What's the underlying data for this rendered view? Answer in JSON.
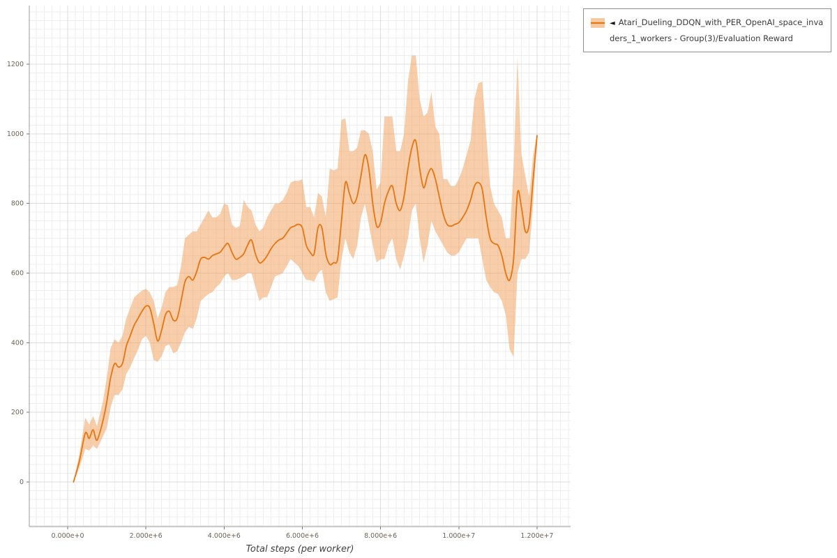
{
  "legend": {
    "toggle_icon": "◄",
    "label": "Atari_Dueling_DDQN_with_PER_OpenAI_space_invaders_1_workers - Group(3)/Evaluation Reward"
  },
  "chart_data": {
    "type": "line",
    "title": "",
    "xlabel": "Total steps (per worker)",
    "ylabel": "",
    "grid": true,
    "legend_position": "top-right",
    "xlim": [
      -980000,
      12860000
    ],
    "ylim": [
      -128,
      1368
    ],
    "x_ticks": {
      "values": [
        0,
        2000000,
        4000000,
        6000000,
        8000000,
        10000000,
        12000000
      ],
      "labels": [
        "0.000e+0",
        "2.000e+6",
        "4.000e+6",
        "6.000e+6",
        "8.000e+6",
        "1.000e+7",
        "1.200e+7"
      ]
    },
    "y_ticks": {
      "values": [
        0,
        200,
        400,
        600,
        800,
        1000,
        1200
      ],
      "labels": [
        "0",
        "200",
        "400",
        "600",
        "800",
        "1000",
        "1200"
      ]
    },
    "series": [
      {
        "name": "Atari_Dueling_DDQN_with_PER_OpenAI_space_invaders_1_workers - Group(3)/Evaluation Reward",
        "color": "#e8740e",
        "band_color": "#f09c56",
        "x": [
          150000,
          300000,
          450000,
          550000,
          650000,
          750000,
          900000,
          1000000,
          1100000,
          1200000,
          1300000,
          1400000,
          1500000,
          1600000,
          1700000,
          1800000,
          1900000,
          2000000,
          2100000,
          2200000,
          2300000,
          2400000,
          2500000,
          2600000,
          2700000,
          2800000,
          2900000,
          3000000,
          3100000,
          3200000,
          3300000,
          3400000,
          3500000,
          3600000,
          3700000,
          3800000,
          3900000,
          4000000,
          4100000,
          4200000,
          4300000,
          4400000,
          4500000,
          4600000,
          4700000,
          4800000,
          4900000,
          5000000,
          5100000,
          5200000,
          5300000,
          5400000,
          5500000,
          5600000,
          5700000,
          5800000,
          5900000,
          6000000,
          6100000,
          6200000,
          6300000,
          6400000,
          6500000,
          6600000,
          6700000,
          6800000,
          6900000,
          7000000,
          7100000,
          7200000,
          7300000,
          7400000,
          7500000,
          7600000,
          7700000,
          7800000,
          7900000,
          8000000,
          8100000,
          8200000,
          8300000,
          8400000,
          8500000,
          8600000,
          8700000,
          8800000,
          8900000,
          9000000,
          9100000,
          9200000,
          9300000,
          9400000,
          9500000,
          9600000,
          9700000,
          9800000,
          9900000,
          10000000,
          10100000,
          10200000,
          10300000,
          10400000,
          10500000,
          10600000,
          10700000,
          10800000,
          10900000,
          11000000,
          11100000,
          11200000,
          11300000,
          11400000,
          11500000,
          11600000,
          11700000,
          11800000,
          11900000,
          12000000
        ],
        "mean": [
          0,
          60,
          140,
          125,
          150,
          120,
          175,
          230,
          300,
          340,
          330,
          340,
          390,
          420,
          450,
          470,
          490,
          505,
          500,
          455,
          405,
          435,
          480,
          490,
          465,
          470,
          520,
          575,
          590,
          580,
          605,
          640,
          645,
          640,
          650,
          655,
          660,
          675,
          685,
          660,
          640,
          645,
          655,
          680,
          695,
          655,
          630,
          635,
          650,
          670,
          685,
          695,
          700,
          715,
          730,
          735,
          740,
          730,
          680,
          660,
          655,
          730,
          730,
          655,
          625,
          630,
          640,
          750,
          860,
          830,
          800,
          820,
          880,
          940,
          900,
          800,
          735,
          745,
          800,
          835,
          850,
          800,
          780,
          820,
          900,
          960,
          980,
          900,
          845,
          880,
          900,
          870,
          820,
          770,
          740,
          735,
          740,
          745,
          760,
          780,
          810,
          850,
          860,
          840,
          760,
          700,
          685,
          680,
          650,
          600,
          580,
          640,
          830,
          790,
          720,
          740,
          870,
          995
        ],
        "lo": [
          0,
          40,
          95,
          90,
          105,
          95,
          130,
          155,
          215,
          250,
          250,
          265,
          310,
          330,
          355,
          380,
          410,
          420,
          400,
          350,
          345,
          360,
          390,
          395,
          370,
          375,
          400,
          430,
          445,
          440,
          470,
          520,
          530,
          540,
          545,
          560,
          570,
          590,
          600,
          580,
          580,
          585,
          590,
          600,
          600,
          560,
          520,
          530,
          530,
          560,
          590,
          595,
          600,
          620,
          640,
          630,
          620,
          600,
          580,
          580,
          575,
          600,
          610,
          545,
          520,
          525,
          530,
          640,
          700,
          660,
          640,
          680,
          760,
          800,
          740,
          680,
          630,
          640,
          640,
          680,
          700,
          640,
          610,
          650,
          700,
          780,
          800,
          700,
          630,
          680,
          750,
          720,
          700,
          680,
          660,
          650,
          650,
          660,
          680,
          700,
          700,
          700,
          700,
          640,
          580,
          560,
          545,
          540,
          520,
          480,
          380,
          360,
          600,
          640,
          640,
          660,
          800,
          985
        ],
        "hi": [
          0,
          80,
          185,
          165,
          190,
          160,
          230,
          300,
          385,
          410,
          400,
          420,
          470,
          500,
          530,
          540,
          550,
          555,
          545,
          520,
          470,
          500,
          545,
          560,
          560,
          565,
          620,
          700,
          710,
          720,
          720,
          740,
          760,
          780,
          760,
          760,
          770,
          800,
          795,
          740,
          730,
          735,
          810,
          790,
          780,
          740,
          720,
          730,
          760,
          780,
          800,
          800,
          810,
          830,
          860,
          865,
          865,
          870,
          790,
          790,
          760,
          830,
          820,
          760,
          900,
          895,
          900,
          1040,
          1045,
          950,
          950,
          960,
          1010,
          1010,
          1000,
          950,
          840,
          860,
          1050,
          1050,
          1050,
          950,
          950,
          1000,
          1150,
          1225,
          1225,
          1100,
          1050,
          1060,
          1120,
          1020,
          1000,
          870,
          870,
          850,
          850,
          870,
          900,
          940,
          980,
          1100,
          1145,
          1150,
          1000,
          850,
          800,
          780,
          760,
          700,
          700,
          900,
          1220,
          940,
          880,
          820,
          940,
          1000
        ]
      }
    ]
  }
}
